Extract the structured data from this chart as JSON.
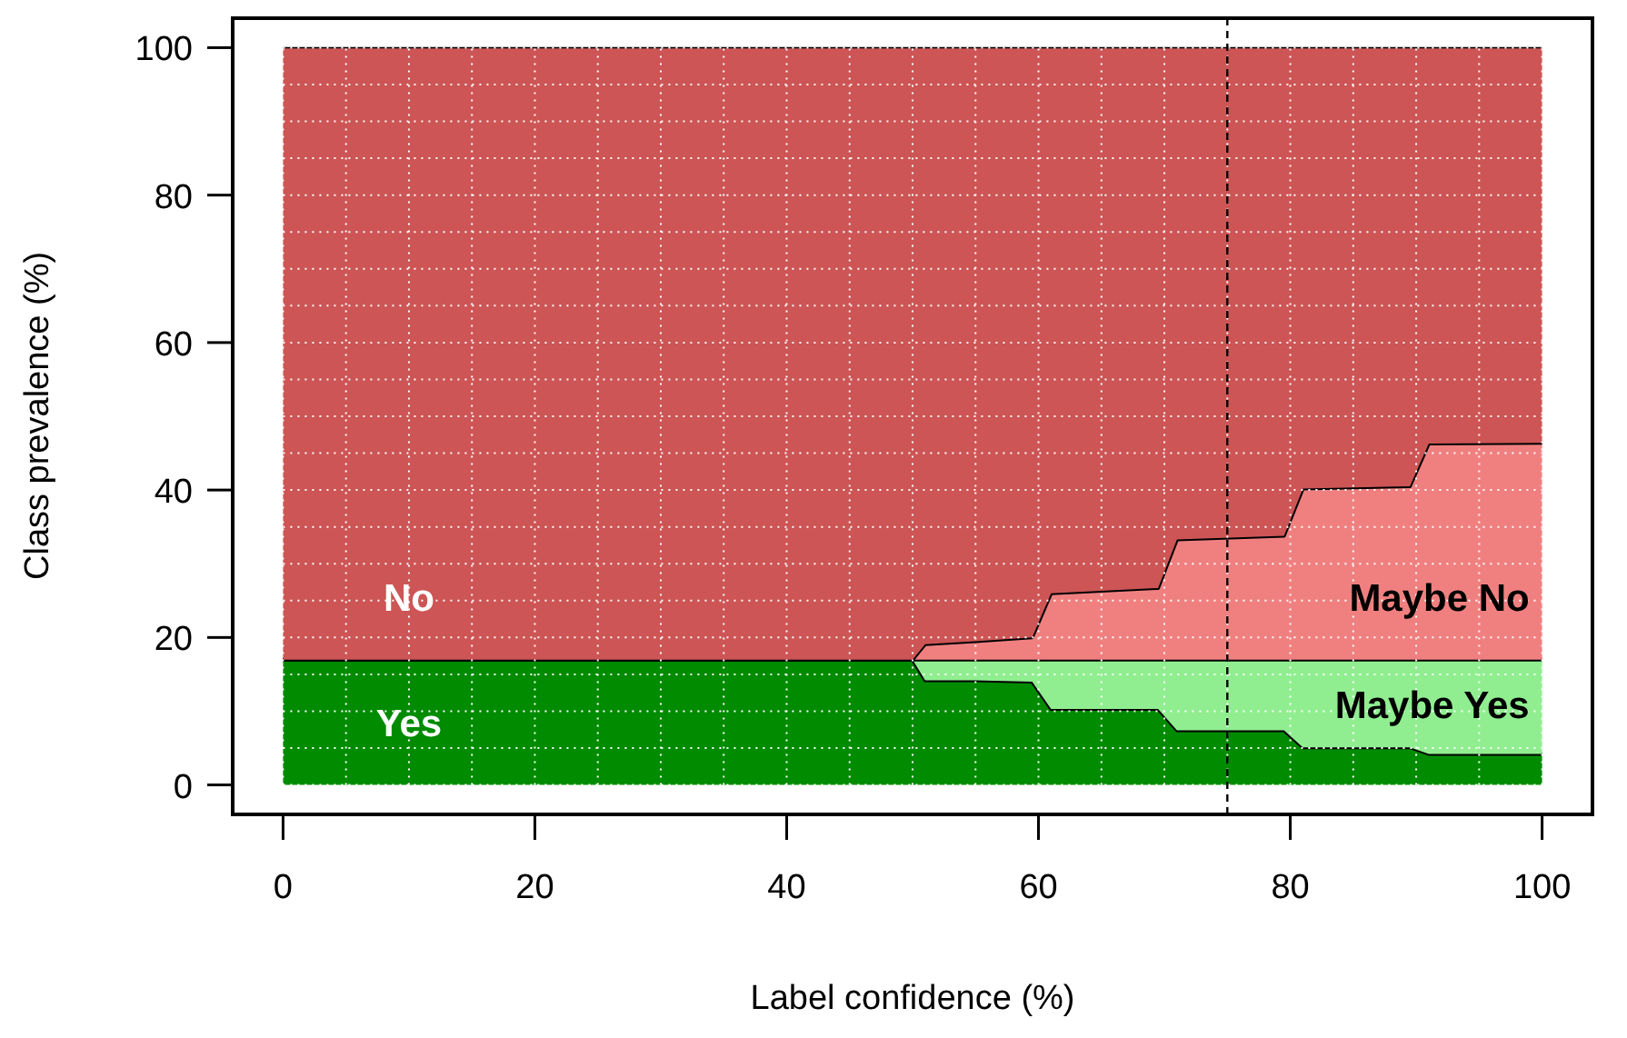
{
  "chart_data": {
    "type": "area",
    "stacked": true,
    "xlabel": "Label confidence (%)",
    "ylabel": "Class prevalence (%)",
    "x": [
      0,
      50,
      51,
      55,
      59.5,
      61,
      69.5,
      71,
      79.5,
      81,
      89.5,
      91,
      100
    ],
    "series": [
      {
        "name": "Yes",
        "color": "#008b00",
        "values": [
          17,
          17,
          14.2,
          14.2,
          14,
          10.3,
          10.3,
          7.4,
          7.4,
          5.1,
          5.1,
          4.2,
          4.2
        ]
      },
      {
        "name": "Maybe Yes",
        "color": "#90ee90",
        "values": [
          0,
          0,
          2.8,
          2.8,
          3,
          6.7,
          6.7,
          9.6,
          9.6,
          11.9,
          11.9,
          12.8,
          12.8
        ]
      },
      {
        "name": "Maybe No",
        "color": "#f08080",
        "values": [
          0,
          0,
          2.1,
          2.5,
          3,
          9,
          9.7,
          16.3,
          16.8,
          23.2,
          23.5,
          29.3,
          29.4
        ]
      },
      {
        "name": "No",
        "color": "#cd5555",
        "values": [
          83,
          83,
          80.9,
          80.5,
          80,
          74,
          73.3,
          66.7,
          66.2,
          59.8,
          59.5,
          53.7,
          53.6
        ]
      }
    ],
    "xlim": [
      -4,
      104
    ],
    "ylim": [
      -4,
      104
    ],
    "xticks": [
      0,
      {
        "value": 5,
        "label": null
      },
      {
        "value": 10,
        "label": null
      },
      {
        "value": 15,
        "label": null
      },
      20,
      {
        "value": 25,
        "label": null
      },
      {
        "value": 30,
        "label": null
      },
      {
        "value": 35,
        "label": null
      },
      40,
      {
        "value": 45,
        "label": null
      },
      {
        "value": 50,
        "label": null
      },
      {
        "value": 55,
        "label": null
      },
      60,
      {
        "value": 65,
        "label": null
      },
      {
        "value": 70,
        "label": null
      },
      {
        "value": 75,
        "label": null
      },
      80,
      {
        "value": 85,
        "label": null
      },
      {
        "value": 90,
        "label": null
      },
      {
        "value": 95,
        "label": null
      },
      100
    ],
    "yticks": [
      0,
      {
        "value": 5,
        "label": null
      },
      {
        "value": 10,
        "label": null
      },
      {
        "value": 15,
        "label": null
      },
      20,
      {
        "value": 25,
        "label": null
      },
      {
        "value": 30,
        "label": null
      },
      {
        "value": 35,
        "label": null
      },
      40,
      {
        "value": 45,
        "label": null
      },
      {
        "value": 50,
        "label": null
      },
      {
        "value": 55,
        "label": null
      },
      60,
      {
        "value": 65,
        "label": null
      },
      {
        "value": 70,
        "label": null
      },
      {
        "value": 75,
        "label": null
      },
      80,
      {
        "value": 85,
        "label": null
      },
      {
        "value": 90,
        "label": null
      },
      {
        "value": 95,
        "label": null
      },
      100
    ],
    "grid": true,
    "ref_lines": [
      {
        "axis": "x",
        "value": 75,
        "label": null,
        "color": "#000000",
        "line_style": "dashed"
      }
    ]
  }
}
